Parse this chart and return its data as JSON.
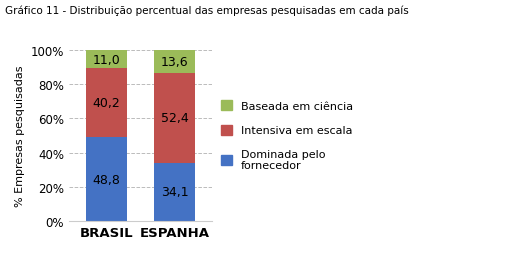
{
  "title": "Gráfico 11 - Distribuição percentual das empresas pesquisadas em cada país",
  "categories": [
    "BRASIL",
    "ESPANHA"
  ],
  "series": {
    "Dominada pelo\nfornecedor": [
      48.8,
      34.1
    ],
    "Intensiva em escala": [
      40.2,
      52.4
    ],
    "Baseada em ciência": [
      11.0,
      13.6
    ]
  },
  "colors": {
    "Dominada pelo\nfornecedor": "#4472C4",
    "Intensiva em escala": "#C0504D",
    "Baseada em ciência": "#9BBB59"
  },
  "ylabel": "% Empresas pesquisadas",
  "ylim": [
    0,
    100
  ],
  "yticks": [
    0,
    20,
    40,
    60,
    80,
    100
  ],
  "ytick_labels": [
    "0%",
    "20%",
    "40%",
    "60%",
    "80%",
    "100%"
  ],
  "bar_width": 0.6,
  "title_fontsize": 7.5,
  "label_fontsize": 9,
  "tick_fontsize": 8.5,
  "ylabel_fontsize": 8,
  "legend_fontsize": 8,
  "background_color": "#FFFFFF",
  "grid_color": "#BBBBBB",
  "text_color_dark": "#000000",
  "frame_color": "#CCCCCC"
}
